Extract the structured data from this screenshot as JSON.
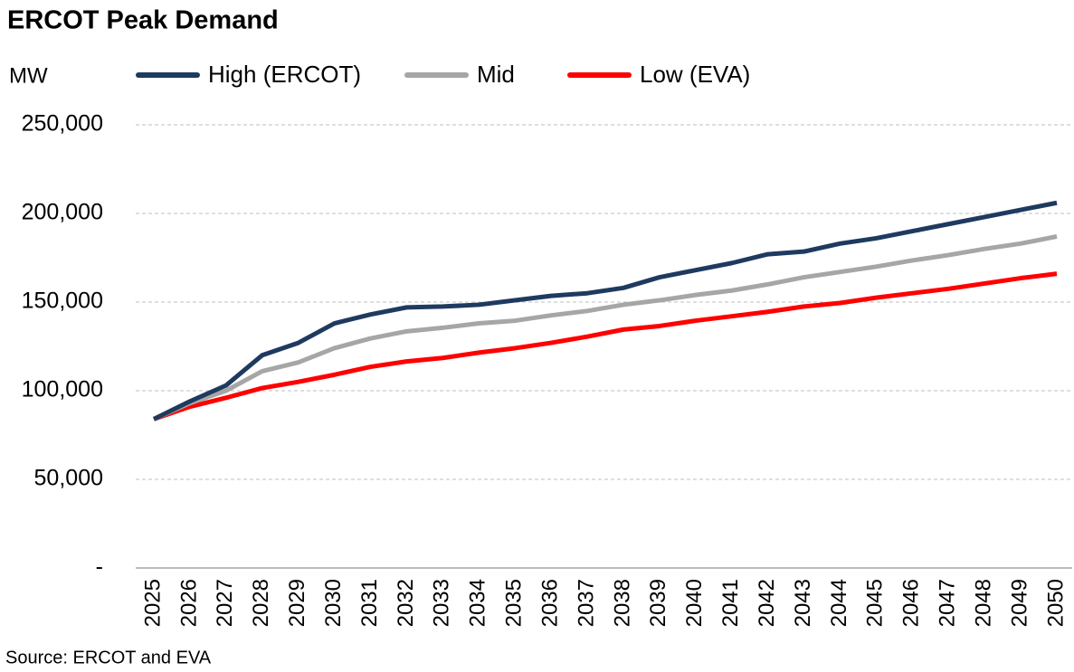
{
  "chart_data": {
    "type": "line",
    "title": "ERCOT Peak Demand",
    "y_label": "MW",
    "source": "Source: ERCOT and EVA",
    "categories": [
      "2025",
      "2026",
      "2027",
      "2028",
      "2029",
      "2030",
      "2031",
      "2032",
      "2033",
      "2034",
      "2035",
      "2036",
      "2037",
      "2038",
      "2039",
      "2040",
      "2041",
      "2042",
      "2043",
      "2044",
      "2045",
      "2046",
      "2047",
      "2048",
      "2049",
      "2050"
    ],
    "series": [
      {
        "name": "High (ERCOT)",
        "color": "#1f3a5f",
        "values": [
          84000,
          94000,
          103000,
          120000,
          127000,
          138000,
          143000,
          147000,
          147500,
          148500,
          151000,
          153500,
          155000,
          158000,
          164000,
          168000,
          172000,
          177000,
          178500,
          183000,
          186000,
          190000,
          194000,
          198000,
          202000,
          206000
        ]
      },
      {
        "name": "Mid",
        "color": "#a6a6a6",
        "values": [
          84000,
          93000,
          100000,
          111000,
          116000,
          124000,
          129500,
          133500,
          135500,
          138000,
          139500,
          142500,
          145000,
          148500,
          151000,
          154000,
          156500,
          160000,
          164000,
          167000,
          170000,
          173500,
          176500,
          180000,
          183000,
          187000
        ]
      },
      {
        "name": "Low (EVA)",
        "color": "#ff0000",
        "values": [
          84000,
          91000,
          96000,
          101500,
          105000,
          109000,
          113500,
          116500,
          118500,
          121500,
          124000,
          127000,
          130500,
          134500,
          136500,
          139500,
          142000,
          144500,
          147500,
          149500,
          152500,
          155000,
          157500,
          160500,
          163500,
          166000
        ]
      }
    ],
    "ylim": [
      0,
      250000
    ],
    "yticks": [
      {
        "value": 0,
        "label": "-"
      },
      {
        "value": 50000,
        "label": "50,000"
      },
      {
        "value": 100000,
        "label": "100,000"
      },
      {
        "value": 150000,
        "label": "150,000"
      },
      {
        "value": 200000,
        "label": "200,000"
      },
      {
        "value": 250000,
        "label": "250,000"
      }
    ],
    "grid": true,
    "legend": "top"
  }
}
